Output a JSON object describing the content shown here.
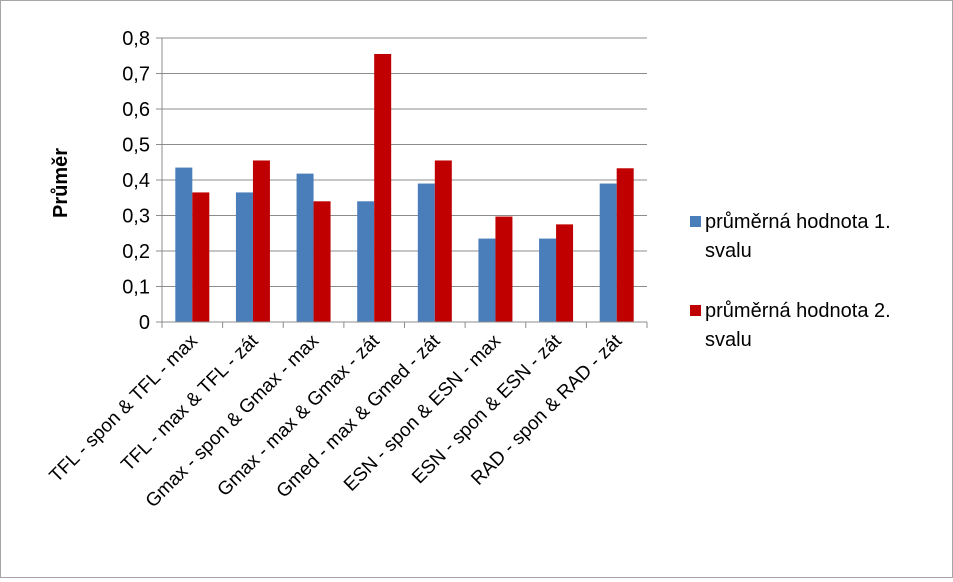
{
  "chart_data": {
    "type": "bar",
    "title": "",
    "xlabel": "",
    "ylabel": "Průměr",
    "ylim": [
      0,
      0.8
    ],
    "ytick_step": 0.1,
    "yticks": [
      "0",
      "0,1",
      "0,2",
      "0,3",
      "0,4",
      "0,5",
      "0,6",
      "0,7",
      "0,8"
    ],
    "grid": true,
    "legend_position": "right",
    "categories": [
      "TFL - spon & TFL - max",
      "TFL - max & TFL - zát",
      "Gmax - spon & Gmax - max",
      "Gmax - max & Gmax - zát",
      "Gmed - max & Gmed - zát",
      "ESN - spon & ESN - max",
      "ESN - spon & ESN - zát",
      "RAD - spon & RAD - zát"
    ],
    "series": [
      {
        "name": "průměrná hodnota 1. svalu",
        "legend_lines": [
          "průměrná hodnota 1.",
          "svalu"
        ],
        "color": "#4a7ebb",
        "values": [
          0.435,
          0.365,
          0.418,
          0.34,
          0.39,
          0.235,
          0.235,
          0.39
        ]
      },
      {
        "name": "průměrná hodnota 2. svalu",
        "legend_lines": [
          "průměrná hodnota 2.",
          "svalu"
        ],
        "color": "#c00000",
        "values": [
          0.365,
          0.455,
          0.34,
          0.755,
          0.455,
          0.297,
          0.275,
          0.433
        ]
      }
    ]
  }
}
